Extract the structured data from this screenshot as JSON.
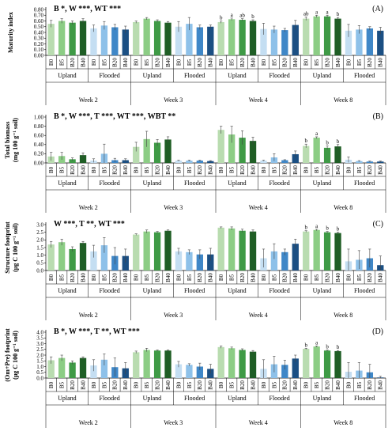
{
  "colors": {
    "upland": [
      "#b9dcb0",
      "#8ccd85",
      "#3f9a46",
      "#1f5e25"
    ],
    "flooded": [
      "#c4def2",
      "#8ec1e9",
      "#3f87c7",
      "#1b4f83"
    ]
  },
  "chart_data": {
    "type": "bar",
    "categories": [
      "B0",
      "B5",
      "B20",
      "B40"
    ],
    "groups": [
      "Upland",
      "Flooded"
    ],
    "weeks": [
      "Week 2",
      "Week 3",
      "Week 4",
      "Week 8"
    ],
    "panels": [
      {
        "panel_label": "(A)",
        "stats": "B *, W ***, WT ***",
        "ylabel_line1": "Maturity index",
        "ylabel_line2": "",
        "ylim": [
          0,
          0.8
        ],
        "yticks": [
          "0.00",
          "0.10",
          "0.20",
          "0.30",
          "0.40",
          "0.50",
          "0.60",
          "0.70",
          "0.80"
        ],
        "values": [
          [
            [
              0.55,
              0.6,
              0.57,
              0.6
            ],
            [
              0.47,
              0.52,
              0.49,
              0.45
            ]
          ],
          [
            [
              0.58,
              0.64,
              0.6,
              0.57
            ],
            [
              0.5,
              0.55,
              0.49,
              0.5
            ]
          ],
          [
            [
              0.58,
              0.63,
              0.62,
              0.6
            ],
            [
              0.46,
              0.45,
              0.44,
              0.53
            ]
          ],
          [
            [
              0.64,
              0.68,
              0.68,
              0.64
            ],
            [
              0.43,
              0.45,
              0.47,
              0.43
            ]
          ]
        ],
        "errors": [
          [
            [
              0.06,
              0.04,
              0.03,
              0.04
            ],
            [
              0.06,
              0.07,
              0.05,
              0.06
            ]
          ],
          [
            [
              0.02,
              0.02,
              0.02,
              0.02
            ],
            [
              0.09,
              0.11,
              0.04,
              0.03
            ]
          ],
          [
            [
              0.02,
              0.02,
              0.02,
              0.02
            ],
            [
              0.1,
              0.06,
              0.03,
              0.08
            ]
          ],
          [
            [
              0.03,
              0.02,
              0.02,
              0.02
            ],
            [
              0.11,
              0.07,
              0.03,
              0.06
            ]
          ]
        ],
        "sig_labels": [
          [
            [
              "",
              "",
              "",
              ""
            ],
            [
              "",
              "",
              "",
              ""
            ]
          ],
          [
            [
              "",
              "",
              "",
              ""
            ],
            [
              "",
              "",
              "",
              ""
            ]
          ],
          [
            [
              "b",
              "a",
              "ab",
              "b"
            ],
            [
              "",
              "",
              "",
              ""
            ]
          ],
          [
            [
              "ab",
              "a",
              "a",
              "b"
            ],
            [
              "",
              "",
              "",
              ""
            ]
          ]
        ]
      },
      {
        "panel_label": "(B)",
        "stats": "B *, W ***, T ***, WT ***, WBT **",
        "ylabel_line1": "Total biomass",
        "ylabel_line2": "(mg 100 g⁻¹ soil)",
        "ylim": [
          0,
          1.0
        ],
        "yticks": [
          "0.00",
          "0.20",
          "0.40",
          "0.60",
          "0.80",
          "1.00"
        ],
        "values": [
          [
            [
              0.14,
              0.15,
              0.08,
              0.17
            ],
            [
              0.05,
              0.2,
              0.06,
              0.06
            ]
          ],
          [
            [
              0.35,
              0.52,
              0.44,
              0.51
            ],
            [
              0.05,
              0.05,
              0.05,
              0.04
            ]
          ],
          [
            [
              0.72,
              0.62,
              0.55,
              0.48
            ],
            [
              0.05,
              0.12,
              0.06,
              0.19
            ]
          ],
          [
            [
              0.37,
              0.55,
              0.33,
              0.36
            ],
            [
              0.07,
              0.04,
              0.03,
              0.03
            ]
          ]
        ],
        "errors": [
          [
            [
              0.09,
              0.08,
              0.03,
              0.05
            ],
            [
              0.04,
              0.21,
              0.04,
              0.03
            ]
          ],
          [
            [
              0.1,
              0.17,
              0.07,
              0.06
            ],
            [
              0.01,
              0.01,
              0.01,
              0.01
            ]
          ],
          [
            [
              0.08,
              0.18,
              0.15,
              0.08
            ],
            [
              0.01,
              0.08,
              0.01,
              0.07
            ]
          ],
          [
            [
              0.04,
              0.02,
              0.04,
              0.04
            ],
            [
              0.06,
              0.01,
              0.01,
              0.01
            ]
          ]
        ],
        "sig_labels": [
          [
            [
              "",
              "",
              "",
              ""
            ],
            [
              "",
              "",
              "",
              ""
            ]
          ],
          [
            [
              "",
              "",
              "",
              ""
            ],
            [
              "",
              "",
              "",
              ""
            ]
          ],
          [
            [
              "",
              "",
              "",
              ""
            ],
            [
              "",
              "",
              "",
              ""
            ]
          ],
          [
            [
              "b",
              "a",
              "b",
              "b"
            ],
            [
              "",
              "",
              "",
              ""
            ]
          ]
        ]
      },
      {
        "panel_label": "(C)",
        "stats": "W ***, T **, WT ***",
        "ylabel_line1": "Structure footprint",
        "ylabel_line2": "(μg C 100 g⁻¹ soil)",
        "ylim": [
          0,
          3.0
        ],
        "yticks": [
          "0.0",
          "0.5",
          "1.0",
          "1.5",
          "2.0",
          "2.5",
          "3.0"
        ],
        "values": [
          [
            [
              1.7,
              1.85,
              1.4,
              1.8
            ],
            [
              1.25,
              1.65,
              0.95,
              0.95
            ]
          ],
          [
            [
              2.35,
              2.55,
              2.5,
              2.6
            ],
            [
              1.25,
              1.2,
              1.05,
              1.05
            ]
          ],
          [
            [
              2.8,
              2.75,
              2.6,
              2.55
            ],
            [
              0.8,
              1.25,
              1.2,
              1.75
            ]
          ],
          [
            [
              2.55,
              2.65,
              2.5,
              2.45
            ],
            [
              0.6,
              0.7,
              0.8,
              0.35
            ]
          ]
        ],
        "errors": [
          [
            [
              0.2,
              0.2,
              0.15,
              0.1
            ],
            [
              0.4,
              0.5,
              0.55,
              0.45
            ]
          ],
          [
            [
              0.05,
              0.1,
              0.05,
              0.05
            ],
            [
              0.2,
              0.15,
              0.3,
              0.4
            ]
          ],
          [
            [
              0.05,
              0.1,
              0.1,
              0.1
            ],
            [
              0.6,
              0.5,
              0.2,
              0.3
            ]
          ],
          [
            [
              0.05,
              0.05,
              0.05,
              0.05
            ],
            [
              0.8,
              0.6,
              0.6,
              0.6
            ]
          ]
        ],
        "sig_labels": [
          [
            [
              "",
              "",
              "",
              ""
            ],
            [
              "",
              "",
              "",
              ""
            ]
          ],
          [
            [
              "",
              "",
              "",
              ""
            ],
            [
              "",
              "",
              "",
              ""
            ]
          ],
          [
            [
              "",
              "",
              "",
              ""
            ],
            [
              "",
              "",
              "",
              ""
            ]
          ],
          [
            [
              "b",
              "a",
              "b",
              "b"
            ],
            [
              "",
              "",
              "",
              ""
            ]
          ]
        ]
      },
      {
        "panel_label": "(D)",
        "stats": "B *, W ***, T **, WT ***",
        "ylabel_line1": "(Om+Pre) footprint",
        "ylabel_line2": "(μg C 100 g⁻¹ soil)",
        "ylim": [
          0,
          4.0
        ],
        "yticks": [
          "0.0",
          "0.5",
          "1.0",
          "1.5",
          "2.0",
          "2.5",
          "3.0",
          "3.5",
          "4.0"
        ],
        "values": [
          [
            [
              1.55,
              1.75,
              1.35,
              1.75
            ],
            [
              1.1,
              1.6,
              0.95,
              0.85
            ]
          ],
          [
            [
              2.25,
              2.45,
              2.4,
              2.4
            ],
            [
              1.2,
              1.15,
              1.0,
              0.8
            ]
          ],
          [
            [
              2.7,
              2.6,
              2.45,
              2.3
            ],
            [
              0.8,
              1.2,
              1.15,
              1.7
            ]
          ],
          [
            [
              2.55,
              2.75,
              2.4,
              2.35
            ],
            [
              0.55,
              0.65,
              0.5,
              0.05
            ]
          ]
        ],
        "errors": [
          [
            [
              0.3,
              0.25,
              0.15,
              0.1
            ],
            [
              0.5,
              0.5,
              0.8,
              0.5
            ]
          ],
          [
            [
              0.1,
              0.15,
              0.05,
              0.05
            ],
            [
              0.25,
              0.1,
              0.3,
              0.4
            ]
          ],
          [
            [
              0.1,
              0.1,
              0.1,
              0.1
            ],
            [
              0.8,
              0.7,
              0.4,
              0.3
            ]
          ],
          [
            [
              0.05,
              0.05,
              0.05,
              0.05
            ],
            [
              0.8,
              0.7,
              0.7,
              0.1
            ]
          ]
        ],
        "sig_labels": [
          [
            [
              "",
              "",
              "",
              ""
            ],
            [
              "",
              "",
              "",
              ""
            ]
          ],
          [
            [
              "",
              "",
              "",
              ""
            ],
            [
              "",
              "",
              "",
              ""
            ]
          ],
          [
            [
              "",
              "",
              "",
              ""
            ],
            [
              "",
              "",
              "",
              ""
            ]
          ],
          [
            [
              "b",
              "a",
              "b",
              "b"
            ],
            [
              "",
              "",
              "",
              ""
            ]
          ]
        ]
      }
    ]
  }
}
